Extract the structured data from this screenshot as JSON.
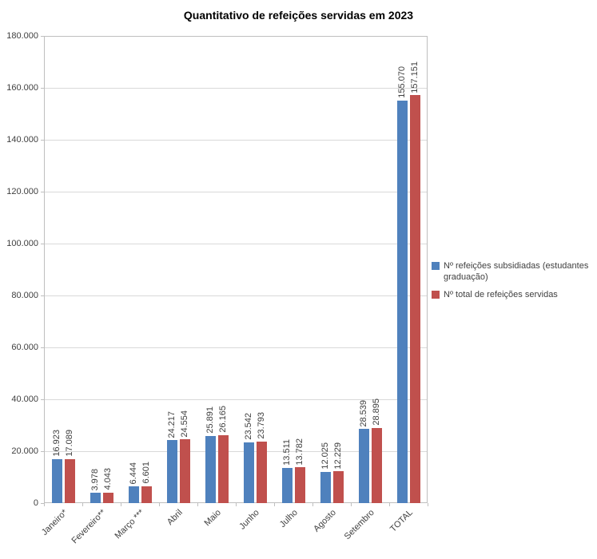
{
  "title": "Quantitativo de refeições servidas em 2023",
  "chart_data": {
    "type": "bar",
    "title": "Quantitativo de refeições servidas em 2023",
    "categories": [
      "Janeiro*",
      "Fevereiro**",
      "Março ***",
      "Abril",
      "Maio",
      "Junho",
      "Julho",
      "Agosto",
      "Setembro",
      "TOTAL"
    ],
    "series": [
      {
        "name": "Nº refeições subsidiadas (estudantes graduação)",
        "color": "#4F81BD",
        "values": [
          16923,
          3978,
          6444,
          24217,
          25891,
          23542,
          13511,
          12025,
          28539,
          155070
        ],
        "labels": [
          "16.923",
          "3.978",
          "6.444",
          "24.217",
          "25.891",
          "23.542",
          "13.511",
          "12.025",
          "28.539",
          "155.070"
        ]
      },
      {
        "name": "Nº total de refeições servidas",
        "color": "#C0504D",
        "values": [
          17089,
          4043,
          6601,
          24554,
          26165,
          23793,
          13782,
          12229,
          28895,
          157151
        ],
        "labels": [
          "17.089",
          "4.043",
          "6.601",
          "24.554",
          "26.165",
          "23.793",
          "13.782",
          "12.229",
          "28.895",
          "157.151"
        ]
      }
    ],
    "ylim": [
      0,
      180000
    ],
    "ytick_step": 20000,
    "ytick_labels": [
      "0",
      "20.000",
      "40.000",
      "60.000",
      "80.000",
      "100.000",
      "120.000",
      "140.000",
      "160.000",
      "180.000"
    ],
    "grid": true,
    "legend_position": "right"
  }
}
